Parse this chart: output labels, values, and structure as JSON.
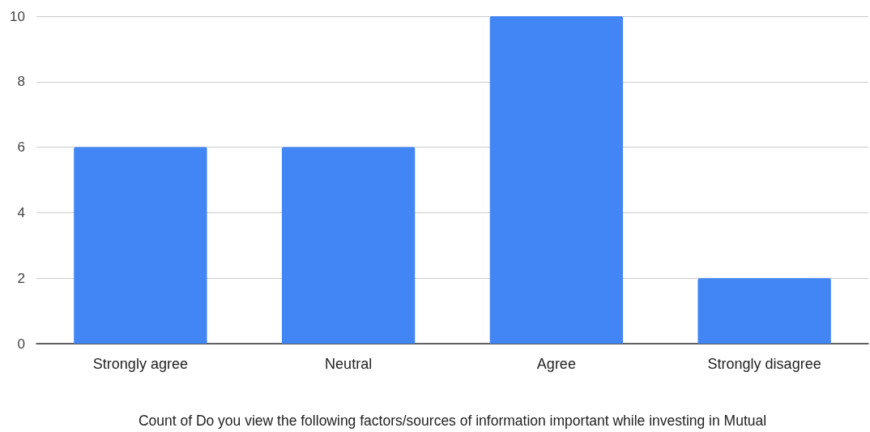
{
  "chart_data": {
    "type": "bar",
    "categories": [
      "Strongly agree",
      "Neutral",
      "Agree",
      "Strongly disagree"
    ],
    "values": [
      6,
      6,
      10,
      2
    ],
    "color": "#4285f4",
    "xlabel": "Count of Do you view the following factors/sources of information important while investing in Mutual",
    "ylim": [
      0,
      10
    ],
    "yticks": [
      0,
      2,
      4,
      6,
      8,
      10
    ],
    "grid": true
  }
}
